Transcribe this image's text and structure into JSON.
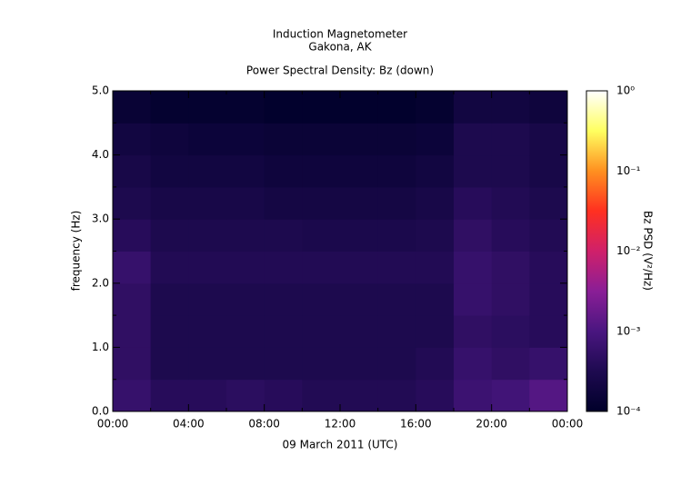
{
  "chart_data": {
    "type": "spectrogram",
    "title": "Induction Magnetometer",
    "subtitle": "Gakona, AK",
    "plot_title": "Power Spectral Density: Bz (down)",
    "xlabel": "09 March 2011 (UTC)",
    "ylabel": "frequency (Hz)",
    "colorbar_label": "Bz PSD (V²/Hz)",
    "xbins": [
      0,
      2,
      4,
      6,
      8,
      10,
      12,
      14,
      16,
      18,
      20,
      22,
      24
    ],
    "ybins": [
      0,
      0.5,
      1,
      1.5,
      2,
      2.5,
      3,
      3.5,
      4,
      4.5,
      5
    ],
    "z": [
      [
        0.0006,
        0.0004,
        0.0004,
        0.00045,
        0.0004,
        0.00035,
        0.00035,
        0.00035,
        0.0004,
        0.0007,
        0.0008,
        0.0012
      ],
      [
        0.0005,
        0.0003,
        0.0003,
        0.0003,
        0.0003,
        0.0003,
        0.0003,
        0.0003,
        0.00035,
        0.0006,
        0.0005,
        0.0006
      ],
      [
        0.0005,
        0.0003,
        0.0003,
        0.0003,
        0.0003,
        0.0003,
        0.0003,
        0.0003,
        0.0003,
        0.0005,
        0.00045,
        0.0004
      ],
      [
        0.0005,
        0.0003,
        0.0003,
        0.0003,
        0.0003,
        0.0003,
        0.0003,
        0.0003,
        0.0003,
        0.0006,
        0.0005,
        0.0004
      ],
      [
        0.0006,
        0.00035,
        0.00035,
        0.00035,
        0.00035,
        0.00035,
        0.00035,
        0.00035,
        0.00035,
        0.0006,
        0.0005,
        0.0004
      ],
      [
        0.0004,
        0.0003,
        0.0003,
        0.0003,
        0.0003,
        0.00028,
        0.00028,
        0.00028,
        0.0003,
        0.0005,
        0.0004,
        0.00035
      ],
      [
        0.0003,
        0.00025,
        0.00025,
        0.00025,
        0.00022,
        0.00022,
        0.00022,
        0.00022,
        0.00025,
        0.0004,
        0.00035,
        0.0003
      ],
      [
        0.00025,
        0.0002,
        0.0002,
        0.0002,
        0.00018,
        0.00018,
        0.00018,
        0.00018,
        0.0002,
        0.0003,
        0.0003,
        0.00025
      ],
      [
        0.0002,
        0.00018,
        0.00016,
        0.00016,
        0.00015,
        0.00015,
        0.00015,
        0.00015,
        0.00016,
        0.0003,
        0.0003,
        0.00025
      ],
      [
        0.00014,
        0.00012,
        0.00012,
        0.00012,
        0.00011,
        0.00011,
        0.00011,
        0.00011,
        0.00012,
        0.0002,
        0.0002,
        0.00018
      ]
    ],
    "xlim": [
      0,
      24
    ],
    "xticks": [
      {
        "value": 0,
        "label": "00:00"
      },
      {
        "value": 4,
        "label": "04:00"
      },
      {
        "value": 8,
        "label": "08:00"
      },
      {
        "value": 12,
        "label": "12:00"
      },
      {
        "value": 16,
        "label": "16:00"
      },
      {
        "value": 20,
        "label": "20:00"
      },
      {
        "value": 24,
        "label": "00:00"
      }
    ],
    "xminor": [
      2,
      6,
      10,
      14,
      18,
      22
    ],
    "ylim": [
      0,
      5
    ],
    "yticks": [
      {
        "value": 0,
        "label": "0.0"
      },
      {
        "value": 1,
        "label": "1.0"
      },
      {
        "value": 2,
        "label": "2.0"
      },
      {
        "value": 3,
        "label": "3.0"
      },
      {
        "value": 4,
        "label": "4.0"
      },
      {
        "value": 5,
        "label": "5.0"
      }
    ],
    "yminor": [
      0.5,
      1.5,
      2.5,
      3.5,
      4.5
    ],
    "clim": [
      0.0001,
      1
    ],
    "log_color": true,
    "cticks": [
      {
        "value": 1,
        "label": "10⁰"
      },
      {
        "value": 0.1,
        "label": "10⁻¹"
      },
      {
        "value": 0.01,
        "label": "10⁻²"
      },
      {
        "value": 0.001,
        "label": "10⁻³"
      },
      {
        "value": 0.0001,
        "label": "10⁻⁴"
      }
    ],
    "colormap": [
      "#00002a",
      "#1e0a50",
      "#4a1680",
      "#8a1e96",
      "#d0206a",
      "#ff3020",
      "#ff9020",
      "#ffff60",
      "#ffffff"
    ]
  }
}
